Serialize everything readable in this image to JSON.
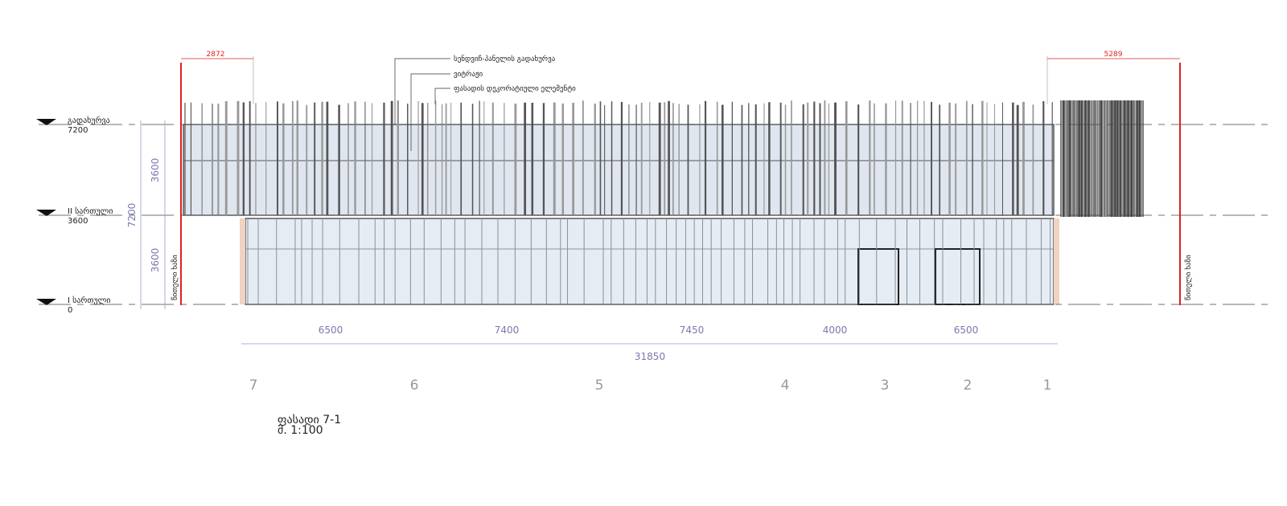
{
  "levels": [
    {
      "name": "გადახურვა",
      "elevation": "7200"
    },
    {
      "name": "II სართული",
      "elevation": "3600"
    },
    {
      "name": "I სართული",
      "elevation": "0"
    }
  ],
  "vertical_dimensions": {
    "upper": "3600",
    "lower": "3600",
    "total": "7200"
  },
  "red_line": {
    "label_left": "წითელი ხაზი",
    "label_right": "წითელი ხაზი",
    "offset_left": "2872",
    "offset_right": "5289",
    "color": "#e02020"
  },
  "callouts": [
    "სენდვიჩ-პანელის გადახურვა",
    "ვიტრაჟი",
    "ფასადის დეკორატიული ელემენტი"
  ],
  "bay_dimensions": [
    "6500",
    "7400",
    "7450",
    "4000",
    "6500"
  ],
  "total_dimension": "31850",
  "axes": [
    "7",
    "6",
    "5",
    "4",
    "3",
    "2",
    "1"
  ],
  "title": {
    "name": "ფასადი 7-1",
    "scale": "მ. 1:100"
  }
}
